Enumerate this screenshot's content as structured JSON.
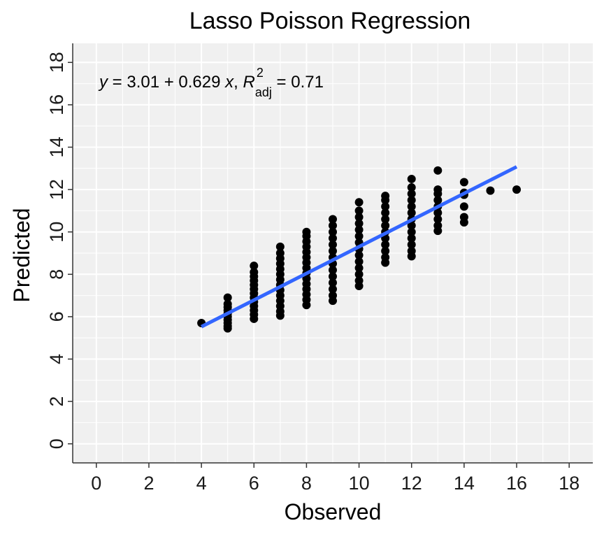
{
  "chart_data": {
    "type": "scatter",
    "title": "Lasso Poisson Regression",
    "xlabel": "Observed",
    "ylabel": "Predicted",
    "xlim": [
      -0.9,
      18.9
    ],
    "ylim": [
      -0.9,
      18.9
    ],
    "x_ticks": [
      0,
      2,
      4,
      6,
      8,
      10,
      12,
      14,
      16,
      18
    ],
    "y_ticks": [
      0,
      2,
      4,
      6,
      8,
      10,
      12,
      14,
      16,
      18
    ],
    "grid": true,
    "annotation": {
      "y_symbol": "y",
      "eq_mid": " = 3.01 + 0.629 ",
      "x_symbol": "x",
      "sep": ", ",
      "r_symbol": "R",
      "r_sup": "2",
      "r_sub": "adj",
      "r_value": " = 0.71"
    },
    "point_color": "#000000",
    "line_color": "#3366ff",
    "fit": {
      "intercept": 3.01,
      "slope": 0.629,
      "x_range": [
        4,
        16
      ]
    },
    "series": [
      {
        "columns": [
          {
            "x": 4,
            "y": [
              5.7
            ]
          },
          {
            "x": 5,
            "y": [
              5.45,
              5.55,
              5.7,
              5.85,
              6.0,
              6.15,
              6.3,
              6.45,
              6.6,
              6.9
            ]
          },
          {
            "x": 6,
            "y": [
              5.9,
              6.1,
              6.3,
              6.5,
              6.7,
              6.9,
              7.1,
              7.3,
              7.5,
              7.7,
              7.9,
              8.1,
              8.4
            ]
          },
          {
            "x": 7,
            "y": [
              6.05,
              6.25,
              6.5,
              6.75,
              7.0,
              7.25,
              7.5,
              7.75,
              8.0,
              8.25,
              8.5,
              8.75,
              9.0,
              9.3
            ]
          },
          {
            "x": 8,
            "y": [
              6.55,
              6.8,
              7.05,
              7.3,
              7.55,
              7.8,
              8.05,
              8.3,
              8.55,
              8.8,
              9.05,
              9.3,
              9.55,
              9.8,
              10.0
            ]
          },
          {
            "x": 9,
            "y": [
              6.75,
              7.0,
              7.3,
              7.6,
              7.9,
              8.2,
              8.5,
              8.8,
              9.1,
              9.4,
              9.7,
              10.0,
              10.3,
              10.6
            ]
          },
          {
            "x": 10,
            "y": [
              7.45,
              7.7,
              8.0,
              8.3,
              8.6,
              8.9,
              9.2,
              9.5,
              9.8,
              10.1,
              10.4,
              10.7,
              11.0,
              11.4
            ]
          },
          {
            "x": 11,
            "y": [
              8.55,
              8.8,
              9.1,
              9.4,
              9.7,
              10.0,
              10.3,
              10.6,
              10.9,
              11.2,
              11.5,
              11.7
            ]
          },
          {
            "x": 12,
            "y": [
              8.85,
              9.1,
              9.4,
              9.7,
              10.0,
              10.3,
              10.6,
              10.9,
              11.2,
              11.5,
              11.8,
              12.1,
              12.5
            ]
          },
          {
            "x": 13,
            "y": [
              10.05,
              10.3,
              10.6,
              10.9,
              11.2,
              11.5,
              11.8,
              12.0,
              12.9
            ]
          },
          {
            "x": 14,
            "y": [
              10.45,
              10.7,
              11.2,
              11.75,
              11.85,
              12.35
            ]
          },
          {
            "x": 15,
            "y": [
              11.95
            ]
          },
          {
            "x": 16,
            "y": [
              12.0
            ]
          }
        ]
      }
    ]
  }
}
